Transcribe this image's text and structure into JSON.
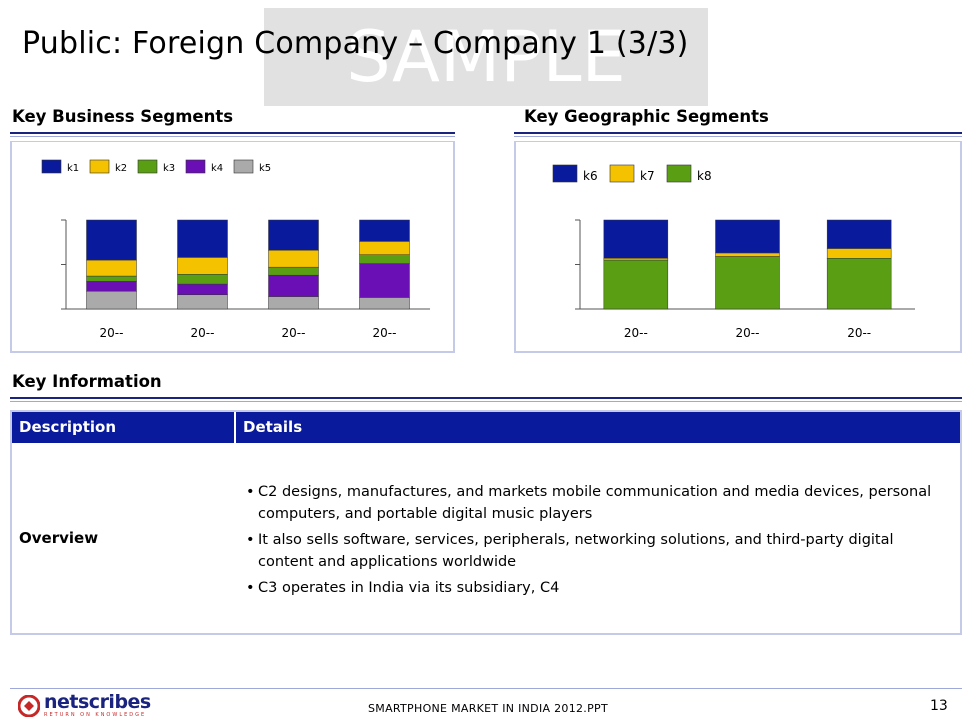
{
  "slide": {
    "title": "Public: Foreign Company – Company 1 (3/3)",
    "watermark": "SAMPLE",
    "page_number": "13"
  },
  "sections": {
    "business": "Key Business Segments",
    "geographic": "Key Geographic Segments",
    "info": "Key Information"
  },
  "table": {
    "headers": [
      "Description",
      "Details"
    ],
    "row_label": "Overview",
    "bullets": [
      "C2 designs, manufactures, and markets mobile communication and media devices, personal computers, and portable digital music players",
      "It also sells software, services, peripherals, networking solutions, and third-party digital content and applications worldwide",
      "C3 operates in India via its subsidiary, C4"
    ]
  },
  "footer": {
    "logo_text": "netscribes",
    "logo_tagline": "RETURN ON KNOWLEDGE",
    "document": "SMARTPHONE MARKET IN INDIA 2012.PPT"
  },
  "colors": {
    "k1": "#0a1a9c",
    "k2": "#f5c200",
    "k3": "#5a9e14",
    "k4": "#6a0fb5",
    "k5": "#aaaaaa",
    "k6": "#0a1a9c",
    "k7": "#f5c200",
    "k8": "#5a9e14",
    "header_bg": "#0a1a9c",
    "logo_red": "#c62828"
  },
  "chart_data": [
    {
      "type": "bar",
      "stacked": true,
      "categories": [
        "20--",
        "20--",
        "20--",
        "20--"
      ],
      "series": [
        {
          "name": "k5",
          "values": [
            0.2,
            0.16,
            0.14,
            0.13
          ]
        },
        {
          "name": "k4",
          "values": [
            0.11,
            0.12,
            0.24,
            0.38
          ]
        },
        {
          "name": "k3",
          "values": [
            0.06,
            0.11,
            0.09,
            0.1
          ]
        },
        {
          "name": "k2",
          "values": [
            0.18,
            0.19,
            0.19,
            0.15
          ]
        },
        {
          "name": "k1",
          "values": [
            0.45,
            0.42,
            0.34,
            0.24
          ]
        }
      ],
      "ylim": [
        0,
        1
      ],
      "legend_order": [
        "k1",
        "k2",
        "k3",
        "k4",
        "k5"
      ],
      "legend_position": "top",
      "grid": false
    },
    {
      "type": "bar",
      "stacked": true,
      "categories": [
        "20--",
        "20--",
        "20--"
      ],
      "series": [
        {
          "name": "k8",
          "values": [
            0.55,
            0.59,
            0.57
          ]
        },
        {
          "name": "k7",
          "values": [
            0.02,
            0.04,
            0.11
          ]
        },
        {
          "name": "k6",
          "values": [
            0.43,
            0.37,
            0.32
          ]
        }
      ],
      "ylim": [
        0,
        1
      ],
      "legend_order": [
        "k6",
        "k7",
        "k8"
      ],
      "legend_position": "top",
      "grid": false
    }
  ]
}
